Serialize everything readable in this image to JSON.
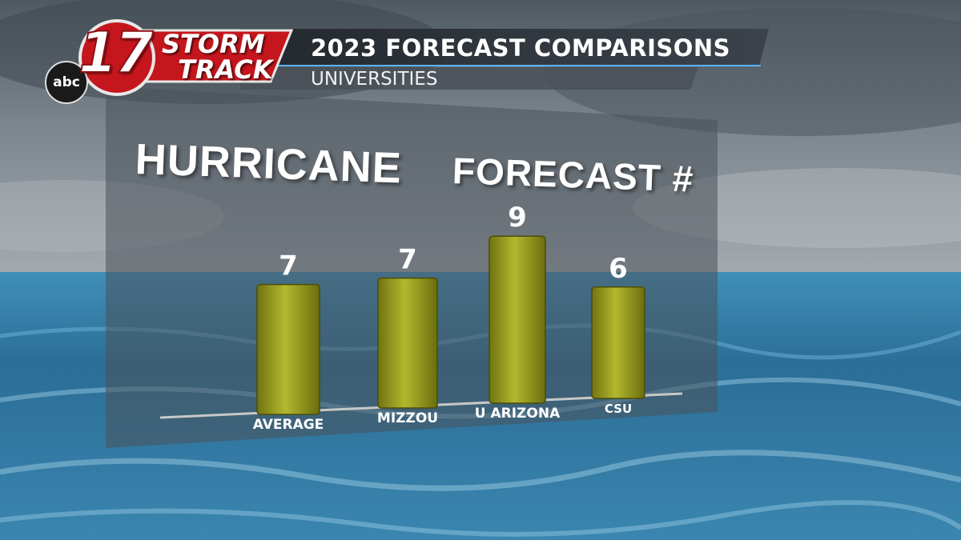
{
  "header": {
    "station_abc": "abc",
    "station_number": "17",
    "brand_line1": "STORM",
    "brand_line2": "TRACK",
    "title": "2023 FORECAST COMPARISONS",
    "subtitle": "UNIVERSITIES"
  },
  "chart_title_part1": "HURRICANE",
  "chart_title_part2": "FORECAST #",
  "colors": {
    "bar": "#8f9419",
    "bar_highlight": "#b9bd3a",
    "sky": "#5c6670",
    "ocean": "#2c6a91",
    "brand_red": "#c4161c",
    "banner": "#2a2f36"
  },
  "chart_data": {
    "type": "bar",
    "title": "HURRICANE FORECAST #",
    "categories": [
      "AVERAGE",
      "MIZZOU",
      "U ARIZONA",
      "CSU"
    ],
    "values": [
      7,
      7,
      9,
      6
    ],
    "series": [
      {
        "values": [
          7,
          7,
          9,
          6
        ]
      }
    ],
    "xlabel": "",
    "ylabel": "",
    "ylim": [
      0,
      9
    ],
    "grid": false,
    "legend": "none",
    "data_labels": true
  }
}
